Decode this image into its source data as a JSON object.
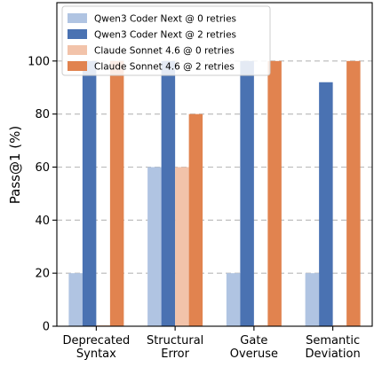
{
  "chart_data": {
    "type": "bar",
    "categories": [
      [
        "Deprecated",
        "Syntax"
      ],
      [
        "Structural",
        "Error"
      ],
      [
        "Gate",
        "Overuse"
      ],
      [
        "Semantic",
        "Deviation"
      ]
    ],
    "series": [
      {
        "name": "Qwen3 Coder Next @ 0 retries",
        "color": "#b0c4e2",
        "values": [
          20,
          60,
          20,
          20
        ]
      },
      {
        "name": "Qwen3 Coder Next @ 2 retries",
        "color": "#4a72b2",
        "values": [
          100,
          100,
          100,
          92
        ]
      },
      {
        "name": "Claude Sonnet 4.6 @ 0 retries",
        "color": "#f2c3aa",
        "values": [
          0,
          60,
          0,
          0
        ]
      },
      {
        "name": "Claude Sonnet 4.6 @ 2 retries",
        "color": "#e1834f",
        "values": [
          100,
          80,
          100,
          100
        ]
      }
    ],
    "ylabel": "Pass@1 (%)",
    "ylim": [
      0,
      122
    ],
    "yticks": [
      "0",
      "20",
      "40",
      "60",
      "80",
      "100"
    ],
    "grid": true,
    "legend_position": "top-left"
  }
}
